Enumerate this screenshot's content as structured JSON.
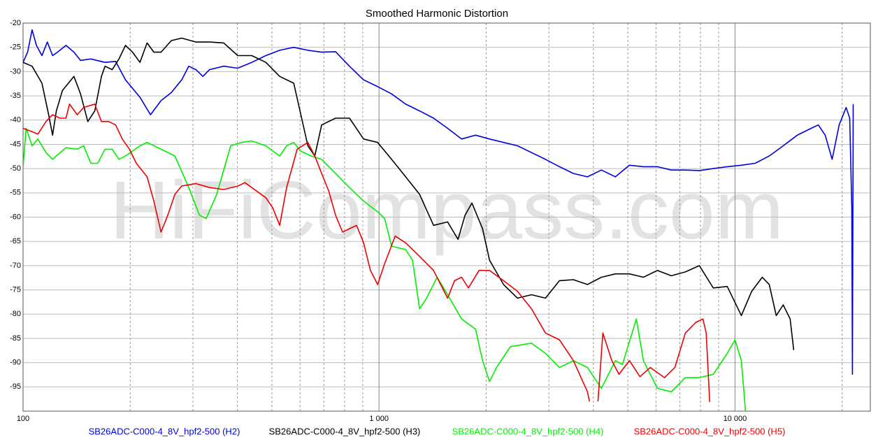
{
  "chart_data": {
    "type": "line",
    "title": "Smoothed Harmonic Distortion",
    "watermark": "HiFiCompass.com",
    "xscale": "log",
    "xlim": [
      100,
      24000
    ],
    "xticks": [
      100,
      {
        "value": 1000,
        "label": "1 000"
      },
      {
        "value": 10000,
        "label": "10 000"
      }
    ],
    "xgrid_minor": [
      200,
      300,
      400,
      500,
      600,
      700,
      800,
      900,
      2000,
      3000,
      4000,
      5000,
      6000,
      7000,
      8000,
      9000,
      20000
    ],
    "ylim": [
      -100,
      -20
    ],
    "yticks": [
      -20,
      -25,
      -30,
      -35,
      -40,
      -45,
      -50,
      -55,
      -60,
      -65,
      -70,
      -75,
      -80,
      -85,
      -90,
      -95
    ],
    "grid": true,
    "series": [
      {
        "name": "SB26ADC-C000-4_8V_hpf2-500 (H2)",
        "color": "#0000dd",
        "x": [
          100,
          103,
          106,
          109,
          113,
          117,
          121,
          125,
          132,
          139,
          145,
          155,
          170,
          182,
          194,
          213,
          228,
          244,
          261,
          279,
          292,
          306,
          320,
          334,
          366,
          401,
          439,
          481,
          526,
          576,
          631,
          690,
          755,
          826,
          905,
          991,
          1085,
          1188,
          1300,
          1423,
          1558,
          1706,
          1867,
          2044,
          2238,
          2449,
          2681,
          2935,
          3213,
          3517,
          3850,
          4215,
          4614,
          5051,
          5529,
          6052,
          6625,
          7253,
          7940,
          8690,
          9510,
          10420,
          11400,
          12480,
          13660,
          14960,
          16370,
          17140,
          17920,
          18750,
          19620,
          20520,
          21000,
          21290,
          21380,
          21480
        ],
        "values": [
          -28.1,
          -26,
          -21.4,
          -24.6,
          -26.7,
          -23.9,
          -26.7,
          -26,
          -24.6,
          -26,
          -27.7,
          -27.4,
          -28.1,
          -27.9,
          -31.7,
          -35.3,
          -38.9,
          -36,
          -34.3,
          -31.7,
          -28.9,
          -29.6,
          -31,
          -29.6,
          -28.9,
          -29.3,
          -28.1,
          -26.7,
          -25.6,
          -25,
          -25.6,
          -26,
          -25.9,
          -28.9,
          -31.7,
          -33.1,
          -34.6,
          -36.7,
          -38.1,
          -39.6,
          -41.7,
          -43.9,
          -43.1,
          -43.9,
          -44.6,
          -45.3,
          -46.7,
          -48.1,
          -49.6,
          -51,
          -51.7,
          -50.3,
          -51.7,
          -49.3,
          -49.6,
          -49.6,
          -50.3,
          -50.3,
          -50.4,
          -50,
          -49.6,
          -49.3,
          -48.9,
          -47.4,
          -45.3,
          -43.1,
          -41.7,
          -41,
          -43.1,
          -48.1,
          -41,
          -37.4,
          -39.6,
          -58.1,
          -92.4,
          -36.7
        ]
      },
      {
        "name": "SB26ADC-C000-4_8V_hpf2-500 (H3)",
        "color": "#000000",
        "x": [
          100,
          106,
          113,
          118,
          121,
          124,
          129,
          139,
          145,
          152,
          159,
          166,
          170,
          178,
          186,
          194,
          203,
          213,
          223,
          233,
          244,
          261,
          279,
          306,
          334,
          366,
          401,
          439,
          481,
          526,
          576,
          631,
          660,
          690,
          755,
          826,
          905,
          991,
          1085,
          1188,
          1300,
          1423,
          1558,
          1667,
          1745,
          1824,
          1954,
          2044,
          2238,
          2449,
          2681,
          2935,
          3213,
          3517,
          3850,
          4215,
          4614,
          5051,
          5529,
          6052,
          6625,
          7253,
          7940,
          8690,
          9510,
          10420,
          11140,
          11930,
          12480,
          13060,
          13660,
          14290,
          14620
        ],
        "values": [
          -28.1,
          -28.9,
          -32.4,
          -38.9,
          -43.1,
          -38.1,
          -33.9,
          -31,
          -34.6,
          -40.3,
          -38.1,
          -31,
          -28.9,
          -29.6,
          -27.4,
          -24.6,
          -26,
          -28.1,
          -24.1,
          -26,
          -26,
          -23.6,
          -23.1,
          -23.9,
          -23.9,
          -24.1,
          -26.7,
          -26.7,
          -28.1,
          -31,
          -32.4,
          -45.3,
          -47.4,
          -41,
          -39.6,
          -39.6,
          -43.9,
          -44.6,
          -48.1,
          -51.7,
          -55.3,
          -61.7,
          -61,
          -64.6,
          -59.6,
          -57.1,
          -62.4,
          -68.9,
          -73.9,
          -76.7,
          -76,
          -76.7,
          -73.1,
          -72.9,
          -73.9,
          -72.4,
          -71.7,
          -71.7,
          -72.4,
          -71,
          -72.1,
          -71.3,
          -70,
          -74.6,
          -74.3,
          -80.3,
          -75.3,
          -72.4,
          -73.9,
          -80.3,
          -78.1,
          -81,
          -87.4
        ]
      },
      {
        "name": "SB26ADC-C000-4_8V_hpf2-500 (H4)",
        "color": "#00ee00",
        "x": [
          100,
          102,
          106,
          110,
          116,
          121,
          127,
          132,
          142,
          148,
          155,
          162,
          170,
          178,
          186,
          194,
          213,
          223,
          244,
          267,
          292,
          313,
          327,
          350,
          383,
          410,
          439,
          481,
          526,
          550,
          576,
          602,
          645,
          690,
          755,
          826,
          905,
          991,
          1037,
          1085,
          1188,
          1242,
          1300,
          1360,
          1456,
          1558,
          1706,
          1867,
          1954,
          2044,
          2138,
          2339,
          2681,
          2935,
          3213,
          3517,
          3850,
          4215,
          4614,
          4827,
          5284,
          5529,
          6052,
          6625,
          7253,
          7940,
          8690,
          9510,
          10000,
          10420,
          10700
        ],
        "values": [
          -49.6,
          -41.7,
          -45.3,
          -43.9,
          -46.7,
          -48.1,
          -46.7,
          -45.7,
          -46,
          -45.3,
          -48.9,
          -48.9,
          -46,
          -46,
          -48.1,
          -47.4,
          -45.3,
          -44.6,
          -46,
          -47.4,
          -53.9,
          -59.6,
          -60.3,
          -55.3,
          -45.3,
          -44.6,
          -44.3,
          -45.3,
          -47.4,
          -45.3,
          -44.6,
          -46.4,
          -47.4,
          -48.1,
          -51,
          -53.9,
          -56.7,
          -58.9,
          -60.3,
          -66,
          -66.7,
          -68.9,
          -78.9,
          -76.7,
          -72.4,
          -76,
          -81,
          -83.1,
          -89.6,
          -93.9,
          -91,
          -86.7,
          -86,
          -88.1,
          -91,
          -89.6,
          -91,
          -95.3,
          -89.6,
          -90.4,
          -81,
          -89.6,
          -95.3,
          -96,
          -93.1,
          -93.1,
          -92.4,
          -88.1,
          -85.3,
          -89.6,
          -100
        ]
      },
      {
        "name": "SB26ADC-C000-4_8V_hpf2-500 (H5)",
        "color": "#ee0000",
        "x": [
          100,
          106,
          110,
          116,
          121,
          127,
          132,
          135,
          142,
          148,
          159,
          166,
          174,
          182,
          190,
          199,
          208,
          223,
          233,
          244,
          255,
          267,
          279,
          306,
          334,
          366,
          401,
          420,
          439,
          481,
          503,
          526,
          550,
          589,
          631,
          660,
          690,
          722,
          755,
          790,
          826,
          865,
          905,
          946,
          991,
          1037,
          1110,
          1188,
          1300,
          1423,
          1558,
          1630,
          1706,
          1783,
          1909,
          2044,
          2238,
          2449,
          2681,
          2935,
          3213,
          3517,
          3850,
          3902,
          4083,
          4121,
          4255,
          4508,
          4720,
          5051,
          5406,
          5784,
          6338,
          6777,
          7253,
          7762,
          8125,
          8300,
          8490
        ],
        "values": [
          -41.7,
          -42.4,
          -42.9,
          -40.3,
          -38.9,
          -39.6,
          -39.6,
          -36.7,
          -38.9,
          -37.4,
          -36.7,
          -40.3,
          -40.3,
          -41,
          -43.9,
          -46,
          -48.9,
          -51.7,
          -56.7,
          -63.1,
          -59.6,
          -55.3,
          -53.6,
          -53.1,
          -53.9,
          -54.3,
          -53.6,
          -52.9,
          -53.9,
          -56,
          -58.1,
          -61.7,
          -53.9,
          -46,
          -44.6,
          -47.4,
          -51,
          -54.6,
          -59.6,
          -63.1,
          -62.4,
          -61.7,
          -65.3,
          -71,
          -73.9,
          -69.6,
          -63.9,
          -65.3,
          -68.1,
          -71,
          -76.7,
          -73.1,
          -72.4,
          -74.6,
          -71,
          -71,
          -73.1,
          -75.3,
          -78.9,
          -83.9,
          -85.3,
          -89.6,
          -96,
          -98,
          null,
          -98,
          -83.9,
          -89.6,
          -92.4,
          -89.6,
          -92.9,
          -91,
          -93.1,
          -91,
          -83.9,
          -81.7,
          -81,
          -83.9,
          -98.1
        ]
      }
    ]
  }
}
